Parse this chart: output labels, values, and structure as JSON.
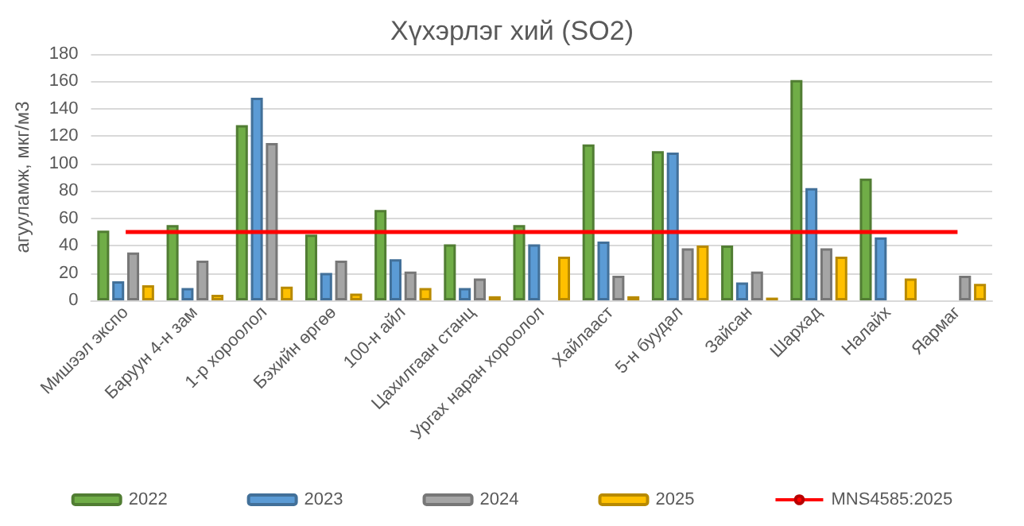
{
  "chart_data": {
    "type": "bar",
    "title": "Хүхэрлэг хий (SO2)",
    "ylabel": "агууламж, мкг/м3",
    "categories": [
      "Мишээл экспо",
      "Баруун 4-н зам",
      "1-р хороолол",
      "Бэхийн өргөө",
      "100-н айл",
      "Цахилгаан станц",
      "Ургах наран хороолол",
      "Хайлааст",
      "5-н буудал",
      "Зайсан",
      "Шархад",
      "Налайх",
      "Яармаг"
    ],
    "series": [
      {
        "name": "2022",
        "color": "#70ad47",
        "values": [
          51,
          55,
          128,
          48,
          66,
          41,
          55,
          114,
          109,
          40,
          161,
          89,
          null
        ]
      },
      {
        "name": "2023",
        "color": "#5b9bd5",
        "values": [
          14,
          9,
          148,
          20,
          30,
          9,
          41,
          43,
          108,
          13,
          82,
          46,
          null
        ]
      },
      {
        "name": "2024",
        "color": "#a5a5a5",
        "values": [
          35,
          29,
          115,
          29,
          21,
          16,
          null,
          18,
          38,
          21,
          38,
          null,
          18
        ]
      },
      {
        "name": "2025",
        "color": "#ffc000",
        "values": [
          11,
          4,
          10,
          5,
          9,
          3,
          32,
          3,
          40,
          2,
          32,
          16,
          12
        ]
      },
      {
        "name": "MNS4585:2025",
        "type": "line",
        "color": "#ff0000",
        "values": [
          50,
          50,
          50,
          50,
          50,
          50,
          50,
          50,
          50,
          50,
          50,
          50,
          50
        ]
      }
    ],
    "marker": "none",
    "ylim": [
      0,
      180
    ],
    "yticks": [
      0,
      20,
      40,
      60,
      80,
      100,
      120,
      140,
      160,
      180
    ],
    "grid": "y",
    "legend": "bottom"
  }
}
